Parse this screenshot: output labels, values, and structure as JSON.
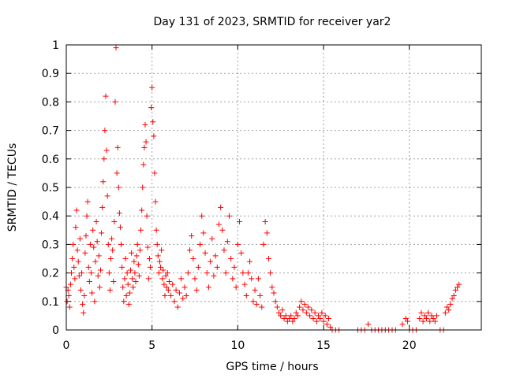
{
  "chart_data": {
    "type": "scatter",
    "title": "Day 131 of 2023, SRMTID for receiver yar2",
    "xlabel": "GPS time / hours",
    "ylabel": "SRMTID / TECUs",
    "xlim": [
      0,
      24.2
    ],
    "ylim": [
      0,
      1
    ],
    "xticks": [
      0,
      5,
      10,
      15,
      20
    ],
    "xtick_labels": [
      "0",
      "5",
      "10",
      "15",
      "20"
    ],
    "yticks": [
      0,
      0.1,
      0.2,
      0.3,
      0.4,
      0.5,
      0.6,
      0.7,
      0.8,
      0.9,
      1
    ],
    "ytick_labels": [
      "0",
      "0.1",
      "0.2",
      "0.3",
      "0.4",
      "0.5",
      "0.6",
      "0.7",
      "0.8",
      "0.9",
      "1"
    ],
    "grid": true,
    "marker": "+",
    "color": "#ff0000",
    "series": [
      {
        "name": "SRMTID",
        "points": [
          [
            0.0,
            0.15
          ],
          [
            0.05,
            0.1
          ],
          [
            0.1,
            0.14
          ],
          [
            0.15,
            0.12
          ],
          [
            0.2,
            0.08
          ],
          [
            0.25,
            0.16
          ],
          [
            0.3,
            0.2
          ],
          [
            0.35,
            0.25
          ],
          [
            0.4,
            0.3
          ],
          [
            0.45,
            0.22
          ],
          [
            0.5,
            0.18
          ],
          [
            0.55,
            0.36
          ],
          [
            0.6,
            0.42
          ],
          [
            0.65,
            0.28
          ],
          [
            0.7,
            0.24
          ],
          [
            0.75,
            0.19
          ],
          [
            0.8,
            0.32
          ],
          [
            0.85,
            0.14
          ],
          [
            0.9,
            0.2
          ],
          [
            0.95,
            0.09
          ],
          [
            1.0,
            0.06
          ],
          [
            1.05,
            0.12
          ],
          [
            1.1,
            0.27
          ],
          [
            1.15,
            0.33
          ],
          [
            1.2,
            0.4
          ],
          [
            1.25,
            0.45
          ],
          [
            1.3,
            0.22
          ],
          [
            1.35,
            0.17
          ],
          [
            1.4,
            0.3
          ],
          [
            1.45,
            0.2
          ],
          [
            1.5,
            0.13
          ],
          [
            1.55,
            0.35
          ],
          [
            1.6,
            0.29
          ],
          [
            1.65,
            0.1
          ],
          [
            1.7,
            0.24
          ],
          [
            1.75,
            0.38
          ],
          [
            1.8,
            0.31
          ],
          [
            1.85,
            0.19
          ],
          [
            1.9,
            0.26
          ],
          [
            1.95,
            0.15
          ],
          [
            2.0,
            0.21
          ],
          [
            2.05,
            0.34
          ],
          [
            2.1,
            0.43
          ],
          [
            2.15,
            0.52
          ],
          [
            2.2,
            0.6
          ],
          [
            2.25,
            0.7
          ],
          [
            2.3,
            0.82
          ],
          [
            2.35,
            0.63
          ],
          [
            2.4,
            0.47
          ],
          [
            2.45,
            0.3
          ],
          [
            2.5,
            0.2
          ],
          [
            2.55,
            0.14
          ],
          [
            2.6,
            0.25
          ],
          [
            2.65,
            0.32
          ],
          [
            2.7,
            0.28
          ],
          [
            2.75,
            0.17
          ],
          [
            2.8,
            0.38
          ],
          [
            2.85,
            0.8
          ],
          [
            2.9,
            0.99
          ],
          [
            2.95,
            0.55
          ],
          [
            3.0,
            0.64
          ],
          [
            3.05,
            0.5
          ],
          [
            3.1,
            0.41
          ],
          [
            3.15,
            0.36
          ],
          [
            3.2,
            0.3
          ],
          [
            3.25,
            0.22
          ],
          [
            3.3,
            0.15
          ],
          [
            3.35,
            0.1
          ],
          [
            3.4,
            0.18
          ],
          [
            3.45,
            0.25
          ],
          [
            3.5,
            0.12
          ],
          [
            3.55,
            0.2
          ],
          [
            3.6,
            0.16
          ],
          [
            3.65,
            0.09
          ],
          [
            3.7,
            0.13
          ],
          [
            3.75,
            0.21
          ],
          [
            3.8,
            0.27
          ],
          [
            3.85,
            0.18
          ],
          [
            3.9,
            0.15
          ],
          [
            3.95,
            0.24
          ],
          [
            4.0,
            0.2
          ],
          [
            4.05,
            0.17
          ],
          [
            4.1,
            0.26
          ],
          [
            4.15,
            0.3
          ],
          [
            4.2,
            0.23
          ],
          [
            4.25,
            0.19
          ],
          [
            4.3,
            0.28
          ],
          [
            4.35,
            0.35
          ],
          [
            4.4,
            0.42
          ],
          [
            4.45,
            0.5
          ],
          [
            4.5,
            0.58
          ],
          [
            4.55,
            0.64
          ],
          [
            4.6,
            0.72
          ],
          [
            4.65,
            0.66
          ],
          [
            4.7,
            0.4
          ],
          [
            4.75,
            0.29
          ],
          [
            4.8,
            0.18
          ],
          [
            4.85,
            0.25
          ],
          [
            4.9,
            0.22
          ],
          [
            4.95,
            0.78
          ],
          [
            5.0,
            0.85
          ],
          [
            5.05,
            0.73
          ],
          [
            5.1,
            0.68
          ],
          [
            5.15,
            0.55
          ],
          [
            5.2,
            0.45
          ],
          [
            5.25,
            0.35
          ],
          [
            5.3,
            0.3
          ],
          [
            5.35,
            0.26
          ],
          [
            5.4,
            0.2
          ],
          [
            5.45,
            0.24
          ],
          [
            5.5,
            0.22
          ],
          [
            5.55,
            0.28
          ],
          [
            5.6,
            0.18
          ],
          [
            5.65,
            0.21
          ],
          [
            5.7,
            0.16
          ],
          [
            5.75,
            0.12
          ],
          [
            5.8,
            0.19
          ],
          [
            5.85,
            0.15
          ],
          [
            5.9,
            0.2
          ],
          [
            5.95,
            0.14
          ],
          [
            6.0,
            0.17
          ],
          [
            6.1,
            0.12
          ],
          [
            6.2,
            0.16
          ],
          [
            6.3,
            0.1
          ],
          [
            6.4,
            0.14
          ],
          [
            6.5,
            0.08
          ],
          [
            6.6,
            0.13
          ],
          [
            6.7,
            0.18
          ],
          [
            6.8,
            0.11
          ],
          [
            6.9,
            0.15
          ],
          [
            7.0,
            0.12
          ],
          [
            7.1,
            0.2
          ],
          [
            7.2,
            0.28
          ],
          [
            7.3,
            0.33
          ],
          [
            7.4,
            0.25
          ],
          [
            7.5,
            0.18
          ],
          [
            7.6,
            0.14
          ],
          [
            7.7,
            0.22
          ],
          [
            7.8,
            0.3
          ],
          [
            7.9,
            0.4
          ],
          [
            8.0,
            0.34
          ],
          [
            8.1,
            0.27
          ],
          [
            8.2,
            0.2
          ],
          [
            8.3,
            0.15
          ],
          [
            8.4,
            0.24
          ],
          [
            8.5,
            0.32
          ],
          [
            8.6,
            0.19
          ],
          [
            8.7,
            0.26
          ],
          [
            8.8,
            0.22
          ],
          [
            8.9,
            0.37
          ],
          [
            9.0,
            0.43
          ],
          [
            9.1,
            0.35
          ],
          [
            9.2,
            0.28
          ],
          [
            9.3,
            0.2
          ],
          [
            9.4,
            0.31
          ],
          [
            9.5,
            0.4
          ],
          [
            9.6,
            0.25
          ],
          [
            9.7,
            0.18
          ],
          [
            9.8,
            0.22
          ],
          [
            9.9,
            0.15
          ],
          [
            10.0,
            0.3
          ],
          [
            10.1,
            0.38
          ],
          [
            10.2,
            0.27
          ],
          [
            10.3,
            0.2
          ],
          [
            10.4,
            0.16
          ],
          [
            10.5,
            0.12
          ],
          [
            10.6,
            0.2
          ],
          [
            10.7,
            0.24
          ],
          [
            10.8,
            0.18
          ],
          [
            10.9,
            0.1
          ],
          [
            11.0,
            0.14
          ],
          [
            11.1,
            0.09
          ],
          [
            11.2,
            0.18
          ],
          [
            11.3,
            0.12
          ],
          [
            11.4,
            0.08
          ],
          [
            11.5,
            0.3
          ],
          [
            11.6,
            0.38
          ],
          [
            11.7,
            0.34
          ],
          [
            11.8,
            0.25
          ],
          [
            11.9,
            0.2
          ],
          [
            12.0,
            0.15
          ],
          [
            12.1,
            0.13
          ],
          [
            12.2,
            0.1
          ],
          [
            12.3,
            0.08
          ],
          [
            12.4,
            0.06
          ],
          [
            12.5,
            0.05
          ],
          [
            12.6,
            0.07
          ],
          [
            12.7,
            0.04
          ],
          [
            12.8,
            0.05
          ],
          [
            12.9,
            0.03
          ],
          [
            13.0,
            0.04
          ],
          [
            13.1,
            0.05
          ],
          [
            13.2,
            0.03
          ],
          [
            13.3,
            0.04
          ],
          [
            13.4,
            0.06
          ],
          [
            13.5,
            0.05
          ],
          [
            13.6,
            0.08
          ],
          [
            13.7,
            0.1
          ],
          [
            13.8,
            0.07
          ],
          [
            13.9,
            0.09
          ],
          [
            14.0,
            0.06
          ],
          [
            14.1,
            0.08
          ],
          [
            14.2,
            0.05
          ],
          [
            14.3,
            0.07
          ],
          [
            14.4,
            0.04
          ],
          [
            14.5,
            0.06
          ],
          [
            14.6,
            0.03
          ],
          [
            14.7,
            0.05
          ],
          [
            14.8,
            0.04
          ],
          [
            14.9,
            0.06
          ],
          [
            15.0,
            0.03
          ],
          [
            15.1,
            0.05
          ],
          [
            15.2,
            0.02
          ],
          [
            15.3,
            0.04
          ],
          [
            15.4,
            0.01
          ],
          [
            15.5,
            0.0
          ],
          [
            15.7,
            0.0
          ],
          [
            15.9,
            0.0
          ],
          [
            17.0,
            0.0
          ],
          [
            17.2,
            0.0
          ],
          [
            17.4,
            0.0
          ],
          [
            17.6,
            0.02
          ],
          [
            17.8,
            0.0
          ],
          [
            18.0,
            0.0
          ],
          [
            18.2,
            0.0
          ],
          [
            18.4,
            0.0
          ],
          [
            18.6,
            0.0
          ],
          [
            18.8,
            0.0
          ],
          [
            19.0,
            0.0
          ],
          [
            19.2,
            0.0
          ],
          [
            19.6,
            0.02
          ],
          [
            19.8,
            0.04
          ],
          [
            19.9,
            0.03
          ],
          [
            20.0,
            0.0
          ],
          [
            20.2,
            0.0
          ],
          [
            20.4,
            0.0
          ],
          [
            20.6,
            0.04
          ],
          [
            20.7,
            0.06
          ],
          [
            20.8,
            0.03
          ],
          [
            20.9,
            0.05
          ],
          [
            21.0,
            0.04
          ],
          [
            21.1,
            0.06
          ],
          [
            21.2,
            0.03
          ],
          [
            21.3,
            0.05
          ],
          [
            21.4,
            0.04
          ],
          [
            21.5,
            0.03
          ],
          [
            21.6,
            0.05
          ],
          [
            21.8,
            0.0
          ],
          [
            22.0,
            0.0
          ],
          [
            22.1,
            0.06
          ],
          [
            22.2,
            0.08
          ],
          [
            22.3,
            0.07
          ],
          [
            22.4,
            0.09
          ],
          [
            22.5,
            0.11
          ],
          [
            22.6,
            0.12
          ],
          [
            22.7,
            0.14
          ],
          [
            22.8,
            0.15
          ],
          [
            22.9,
            0.16
          ]
        ]
      }
    ]
  }
}
